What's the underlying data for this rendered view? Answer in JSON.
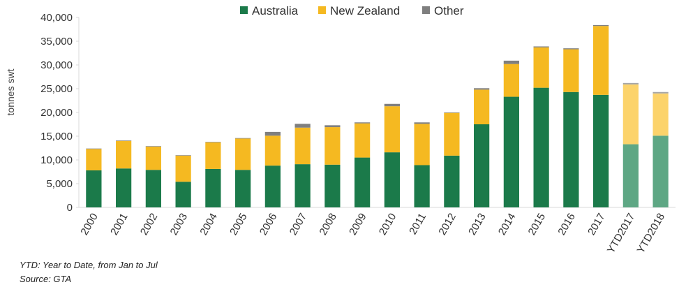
{
  "chart_data": {
    "type": "bar",
    "stacked": true,
    "categories": [
      "2000",
      "2001",
      "2002",
      "2003",
      "2004",
      "2005",
      "2006",
      "2007",
      "2008",
      "2009",
      "2010",
      "2011",
      "2012",
      "2013",
      "2014",
      "2015",
      "2016",
      "2017",
      "YTD2017",
      "YTD2018"
    ],
    "series": [
      {
        "name": "Australia",
        "color": "#1b7a4a",
        "values": [
          7800,
          8200,
          7900,
          5400,
          8100,
          7900,
          8800,
          9100,
          9000,
          10500,
          11600,
          8900,
          10900,
          17500,
          23300,
          25200,
          24300,
          23700,
          13300,
          15100
        ]
      },
      {
        "name": "New Zealand",
        "color": "#f5b921",
        "values": [
          4500,
          5800,
          4900,
          5500,
          5600,
          6600,
          6300,
          7700,
          7900,
          7200,
          9700,
          8700,
          9000,
          7300,
          6900,
          8500,
          9000,
          14500,
          12600,
          8900
        ]
      },
      {
        "name": "Other",
        "color": "#7f7f7f",
        "values": [
          100,
          100,
          100,
          100,
          100,
          100,
          800,
          800,
          400,
          200,
          500,
          300,
          100,
          300,
          700,
          200,
          200,
          200,
          300,
          300
        ]
      }
    ],
    "faded_categories": [
      "YTD2017",
      "YTD2018"
    ],
    "faded_colors": {
      "Australia": "#5ea784",
      "New Zealand": "#fcd36b",
      "Other": "#a6a6a6"
    },
    "ylim": [
      0,
      40000
    ],
    "yticks": [
      0,
      5000,
      10000,
      15000,
      20000,
      25000,
      30000,
      35000,
      40000
    ],
    "ytick_labels": [
      "0",
      "5,000",
      "10,000",
      "15,000",
      "20,000",
      "25,000",
      "30,000",
      "35,000",
      "40,000"
    ],
    "ylabel": "tonnes swt",
    "xlabel": "",
    "title": "",
    "legend_position": "top-center",
    "grid": false
  },
  "notes": {
    "line1": "YTD: Year to Date, from Jan to Jul",
    "line2": "Source: GTA"
  }
}
